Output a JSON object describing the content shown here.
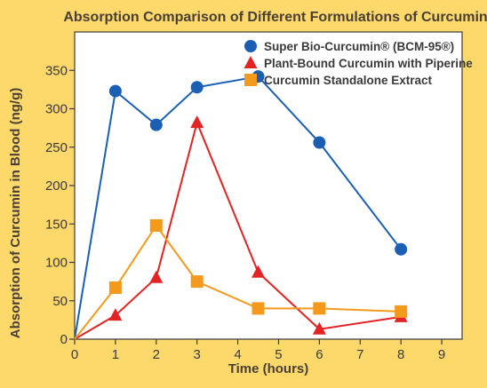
{
  "chart_data": {
    "type": "line",
    "title": "Absorption Comparison of Different Formulations of Curcumin",
    "xlabel": "Time (hours)",
    "ylabel": "Absorption of Curcumin in Blood (ng/g)",
    "xlim": [
      0,
      9.5
    ],
    "ylim": [
      0,
      400
    ],
    "x_ticks": [
      0,
      1,
      2,
      3,
      4,
      5,
      6,
      7,
      8,
      9
    ],
    "y_ticks": [
      0,
      50,
      100,
      150,
      200,
      250,
      300,
      350
    ],
    "grid": false,
    "legend_position": "top-right",
    "series": [
      {
        "name": "Super Bio-Curcumin® (BCM-95®)",
        "color": "#1A5FB4",
        "marker": "circle",
        "x": [
          0,
          1,
          2,
          3,
          4.5,
          6,
          8
        ],
        "y": [
          0,
          323,
          279,
          328,
          342,
          256,
          117
        ]
      },
      {
        "name": "Plant-Bound Curcumin with Piperine",
        "color": "#E32424",
        "marker": "triangle",
        "x": [
          0,
          1,
          2,
          3,
          4.5,
          6,
          8
        ],
        "y": [
          0,
          31,
          80,
          282,
          87,
          13,
          29
        ]
      },
      {
        "name": "Curcumin Standalone Extract",
        "color": "#F39A1C",
        "marker": "square",
        "x": [
          0,
          1,
          2,
          3,
          4.5,
          6,
          8
        ],
        "y": [
          0,
          67,
          148,
          75,
          40,
          40,
          36
        ]
      }
    ]
  }
}
